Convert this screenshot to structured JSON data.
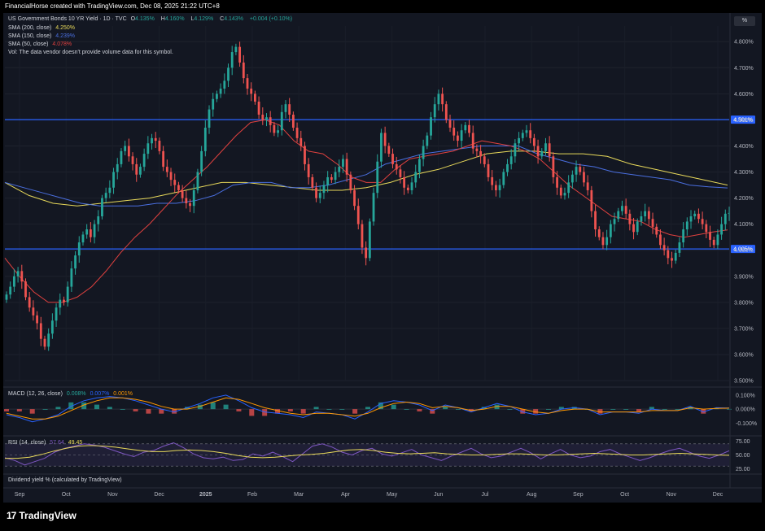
{
  "creator_line": "FinancialHorse created with TradingView.com, Dec 08, 2025 21:22 UTC+8",
  "header": {
    "symbol": "US Government Bonds 10 YR Yield · 1D · TVC",
    "o_label": "O",
    "o_value": "4.135%",
    "h_label": "H",
    "h_value": "4.160%",
    "l_label": "L",
    "l_value": "4.129%",
    "c_label": "C",
    "c_value": "4.143%",
    "change": "+0.004 (+0.10%)",
    "sma200_label": "SMA (200, close)",
    "sma200_value": "4.250%",
    "sma150_label": "SMA (150, close)",
    "sma150_value": "4.239%",
    "sma50_label": "SMA (50, close)",
    "sma50_value": "4.078%",
    "vol_text": "Vol: The data vendor doesn't provide volume data for this symbol."
  },
  "scale_button": "%",
  "macd_legend": {
    "label": "MACD (12, 26, close)",
    "v1": "0.008%",
    "v2": "0.007%",
    "v3": "0.001%"
  },
  "rsi_legend": {
    "label": "RSI (14, close)",
    "v1": "57.64",
    "v2": "49.45"
  },
  "dividend_label": "Dividend yield % (calculated by TradingView)",
  "brand": {
    "name": "TradingView",
    "mark": "17"
  },
  "colors": {
    "background": "#131722",
    "up": "#26a69a",
    "down": "#ef5350",
    "sma200": "#e8d95a",
    "sma150": "#4a6fe0",
    "sma50": "#e0413f",
    "hline": "#2962ff",
    "macd": "#2962ff",
    "signal": "#ff9800",
    "rsi": "#7e57c2",
    "rsi_ma": "#e8d95a"
  },
  "chart_data": {
    "type": "candlestick",
    "ylim": [
      3.5,
      4.86
    ],
    "y_ticks": [
      "4.800%",
      "4.700%",
      "4.600%",
      "4.500%",
      "4.400%",
      "4.300%",
      "4.200%",
      "4.100%",
      "4.000%",
      "3.900%",
      "3.800%",
      "3.700%",
      "3.600%",
      "3.500%"
    ],
    "x_ticks": [
      "Sep",
      "Oct",
      "Nov",
      "Dec",
      "2025",
      "Feb",
      "Mar",
      "Apr",
      "May",
      "Jun",
      "Jul",
      "Aug",
      "Sep",
      "Oct",
      "Nov",
      "Dec"
    ],
    "horizontal_lines": [
      {
        "value": 4.501,
        "label": "4.501%"
      },
      {
        "value": 4.005,
        "label": "4.005%"
      }
    ],
    "close_series": [
      3.83,
      3.86,
      3.9,
      3.92,
      3.88,
      3.82,
      3.78,
      3.75,
      3.72,
      3.66,
      3.63,
      3.68,
      3.73,
      3.78,
      3.81,
      3.8,
      3.86,
      3.93,
      3.98,
      4.03,
      4.06,
      4.08,
      4.05,
      4.1,
      4.13,
      4.2,
      4.22,
      4.24,
      4.3,
      4.33,
      4.38,
      4.4,
      4.36,
      4.33,
      4.29,
      4.32,
      4.37,
      4.41,
      4.43,
      4.42,
      4.38,
      4.32,
      4.3,
      4.27,
      4.25,
      4.23,
      4.2,
      4.18,
      4.17,
      4.23,
      4.3,
      4.38,
      4.47,
      4.54,
      4.58,
      4.6,
      4.62,
      4.65,
      4.7,
      4.76,
      4.78,
      4.72,
      4.66,
      4.62,
      4.6,
      4.57,
      4.52,
      4.5,
      4.51,
      4.48,
      4.45,
      4.46,
      4.53,
      4.56,
      4.52,
      4.47,
      4.43,
      4.4,
      4.33,
      4.28,
      4.24,
      4.2,
      4.22,
      4.25,
      4.28,
      4.27,
      4.3,
      4.32,
      4.35,
      4.29,
      4.23,
      4.17,
      4.1,
      4.01,
      3.97,
      4.11,
      4.22,
      4.34,
      4.45,
      4.4,
      4.37,
      4.33,
      4.31,
      4.28,
      4.24,
      4.23,
      4.26,
      4.3,
      4.35,
      4.4,
      4.44,
      4.51,
      4.56,
      4.6,
      4.56,
      4.5,
      4.47,
      4.44,
      4.42,
      4.46,
      4.48,
      4.45,
      4.39,
      4.38,
      4.36,
      4.33,
      4.28,
      4.25,
      4.23,
      4.25,
      4.3,
      4.33,
      4.36,
      4.41,
      4.43,
      4.45,
      4.46,
      4.43,
      4.4,
      4.36,
      4.38,
      4.41,
      4.36,
      4.28,
      4.24,
      4.21,
      4.22,
      4.26,
      4.29,
      4.32,
      4.3,
      4.26,
      4.23,
      4.15,
      4.08,
      4.05,
      4.02,
      4.05,
      4.1,
      4.12,
      4.15,
      4.17,
      4.14,
      4.1,
      4.07,
      4.11,
      4.13,
      4.15,
      4.12,
      4.09,
      4.06,
      4.02,
      4.0,
      3.97,
      3.96,
      3.99,
      4.03,
      4.08,
      4.11,
      4.13,
      4.14,
      4.12,
      4.1,
      4.07,
      4.04,
      4.02,
      4.06,
      4.1,
      4.14,
      4.143
    ],
    "sma50_series": [
      3.97,
      3.9,
      3.84,
      3.8,
      3.8,
      3.82,
      3.86,
      3.92,
      3.99,
      4.05,
      4.1,
      4.16,
      4.22,
      4.27,
      4.32,
      4.38,
      4.44,
      4.49,
      4.5,
      4.48,
      4.42,
      4.38,
      4.37,
      4.33,
      4.28,
      4.26,
      4.26,
      4.31,
      4.35,
      4.36,
      4.37,
      4.38,
      4.4,
      4.42,
      4.41,
      4.4,
      4.38,
      4.35,
      4.3,
      4.25,
      4.21,
      4.17,
      4.13,
      4.12,
      4.11,
      4.08,
      4.06,
      4.05,
      4.06,
      4.07,
      4.078
    ],
    "sma150_series": [
      4.26,
      4.24,
      4.22,
      4.2,
      4.18,
      4.17,
      4.17,
      4.17,
      4.18,
      4.18,
      4.19,
      4.21,
      4.25,
      4.26,
      4.26,
      4.24,
      4.24,
      4.25,
      4.27,
      4.29,
      4.33,
      4.35,
      4.37,
      4.38,
      4.39,
      4.4,
      4.4,
      4.4,
      4.37,
      4.35,
      4.33,
      4.32,
      4.3,
      4.29,
      4.28,
      4.27,
      4.25,
      4.243,
      4.239
    ],
    "sma200_series": [
      4.26,
      4.21,
      4.18,
      4.17,
      4.18,
      4.19,
      4.2,
      4.22,
      4.24,
      4.26,
      4.26,
      4.25,
      4.24,
      4.23,
      4.23,
      4.24,
      4.26,
      4.29,
      4.31,
      4.34,
      4.37,
      4.38,
      4.38,
      4.37,
      4.37,
      4.36,
      4.33,
      4.31,
      4.29,
      4.27,
      4.25
    ],
    "macd": {
      "ylim": [
        -0.15,
        0.14
      ],
      "y_ticks": [
        "0.100%",
        "0.000%",
        "-0.100%"
      ],
      "macd_series": [
        -0.04,
        -0.06,
        -0.09,
        -0.07,
        -0.04,
        0.02,
        0.06,
        0.08,
        0.09,
        0.08,
        0.06,
        0.03,
        0.0,
        -0.02,
        0.01,
        0.04,
        0.08,
        0.1,
        0.06,
        0.01,
        -0.02,
        -0.03,
        -0.04,
        -0.06,
        -0.02,
        -0.03,
        -0.04,
        -0.07,
        -0.02,
        0.04,
        0.06,
        0.05,
        0.03,
        -0.01,
        0.03,
        0.01,
        -0.02,
        0.01,
        0.04,
        0.02,
        -0.02,
        -0.04,
        -0.03,
        0.0,
        0.01,
        0.0,
        -0.04,
        -0.02,
        -0.02,
        -0.03,
        0.0,
        -0.01,
        -0.01,
        0.02,
        -0.02,
        0.01,
        0.008
      ],
      "signal_series": [
        -0.03,
        -0.05,
        -0.07,
        -0.07,
        -0.05,
        -0.01,
        0.03,
        0.06,
        0.08,
        0.08,
        0.07,
        0.05,
        0.02,
        0.0,
        0.0,
        0.02,
        0.05,
        0.08,
        0.07,
        0.04,
        0.01,
        -0.01,
        -0.03,
        -0.04,
        -0.03,
        -0.03,
        -0.04,
        -0.05,
        -0.03,
        0.01,
        0.04,
        0.05,
        0.04,
        0.01,
        0.02,
        0.01,
        -0.01,
        0.0,
        0.02,
        0.02,
        0.0,
        -0.02,
        -0.03,
        -0.01,
        0.0,
        0.0,
        -0.02,
        -0.02,
        -0.02,
        -0.02,
        -0.01,
        -0.01,
        -0.01,
        0.01,
        0.0,
        0.005,
        0.007
      ]
    },
    "rsi": {
      "ylim": [
        20,
        80
      ],
      "y_ticks": [
        "75.00",
        "50.00",
        "25.00"
      ],
      "band": [
        30,
        70
      ],
      "rsi_series": [
        45,
        40,
        32,
        38,
        44,
        55,
        62,
        66,
        70,
        68,
        64,
        58,
        52,
        47,
        55,
        58,
        66,
        72,
        63,
        52,
        45,
        43,
        46,
        40,
        42,
        52,
        48,
        55,
        47,
        38,
        52,
        66,
        70,
        64,
        55,
        50,
        58,
        62,
        52,
        48,
        54,
        60,
        50,
        45,
        40,
        48,
        55,
        62,
        52,
        45,
        48,
        55,
        62,
        54,
        43,
        52,
        60,
        50,
        45,
        48,
        56,
        60,
        52,
        46,
        40,
        45,
        52,
        58,
        62,
        55,
        48,
        44,
        50,
        57.64
      ],
      "ma_series": [
        44,
        44,
        46,
        51,
        57,
        62,
        66,
        67,
        66,
        64,
        61,
        58,
        56,
        56,
        58,
        59,
        58,
        56,
        53,
        49,
        46,
        45,
        46,
        48,
        50,
        51,
        53,
        56,
        59,
        60,
        58,
        55,
        53,
        52,
        53,
        54,
        52,
        51,
        50,
        50,
        51,
        52,
        52,
        51,
        50,
        50,
        51,
        52,
        53,
        52,
        51,
        50,
        50,
        51,
        52,
        53,
        52,
        51,
        50,
        49.45
      ]
    }
  }
}
